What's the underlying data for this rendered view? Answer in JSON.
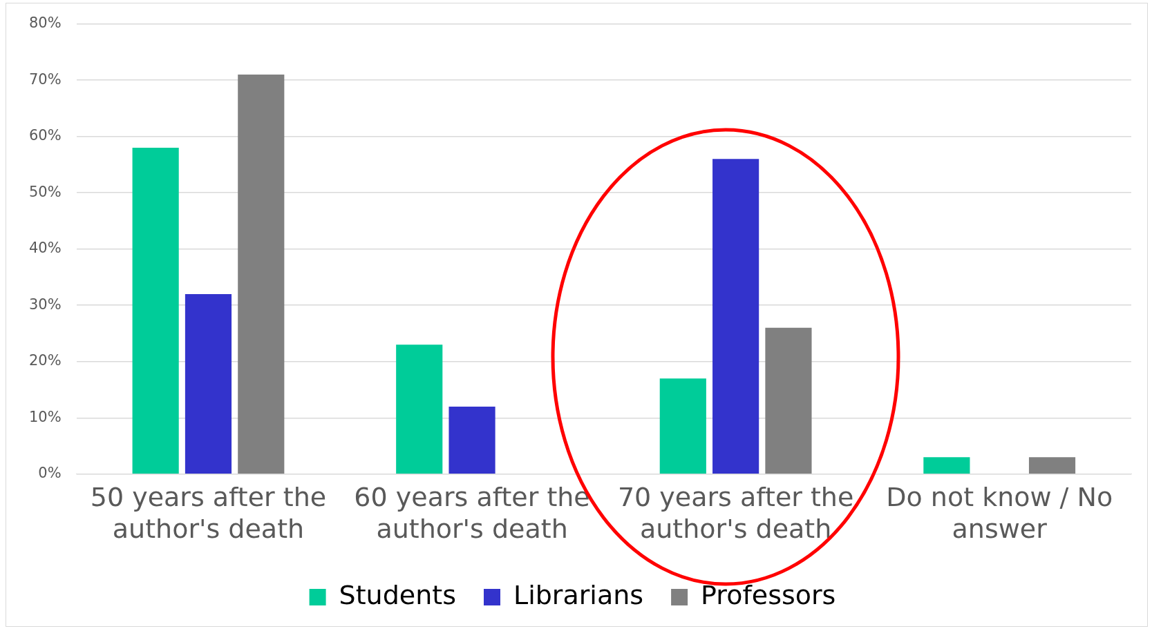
{
  "chart_data": {
    "type": "bar",
    "categories": [
      "50 years after the author's death",
      "60 years after the author's death",
      "70 years after the author's death",
      "Do not know / No answer"
    ],
    "series": [
      {
        "name": "Students",
        "color": "#00cc99",
        "values": [
          58,
          23,
          17,
          3
        ]
      },
      {
        "name": "Librarians",
        "color": "#3333cc",
        "values": [
          32,
          12,
          56,
          0
        ]
      },
      {
        "name": "Professors",
        "color": "#808080",
        "values": [
          71,
          0,
          26,
          3
        ]
      }
    ],
    "ylim": [
      0,
      80
    ],
    "yticks": [
      {
        "value": 0,
        "label": "0%"
      },
      {
        "value": 10,
        "label": "10%"
      },
      {
        "value": 20,
        "label": "20%"
      },
      {
        "value": 30,
        "label": "30%"
      },
      {
        "value": 40,
        "label": "40%"
      },
      {
        "value": 50,
        "label": "50%"
      },
      {
        "value": 60,
        "label": "60%"
      },
      {
        "value": 70,
        "label": "70%"
      },
      {
        "value": 80,
        "label": "80%"
      }
    ],
    "grid": "y",
    "legend": "bottom"
  }
}
